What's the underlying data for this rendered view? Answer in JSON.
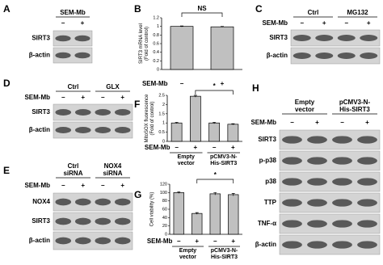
{
  "blots": [
    {
      "panel": "A",
      "groups": [
        [
          "SEM-Mb"
        ]
      ],
      "lanes": [
        "−",
        "+"
      ],
      "rows": [
        "SIRT3",
        "β-actin"
      ]
    },
    {
      "panel": "C",
      "groups": [
        [
          "Ctrl"
        ],
        [
          "MG132"
        ]
      ],
      "treatment_label": "SEM-Mb",
      "lanes": [
        "−",
        "+",
        "−",
        "+"
      ],
      "rows": [
        "SIRT3",
        "β-actin"
      ]
    },
    {
      "panel": "D",
      "groups": [
        [
          "Ctrl"
        ],
        [
          "GLX"
        ]
      ],
      "treatment_label": "SEM-Mb",
      "lanes": [
        "−",
        "+",
        "−",
        "+"
      ],
      "rows": [
        "SIRT3",
        "β-actin"
      ]
    },
    {
      "panel": "E",
      "groups": [
        [
          "Ctrl",
          "siRNA"
        ],
        [
          "NOX4",
          "siRNA"
        ]
      ],
      "treatment_label": "SEM-Mb",
      "lanes": [
        "−",
        "+",
        "−",
        "+"
      ],
      "rows": [
        "NOX4",
        "SIRT3",
        "β-actin"
      ]
    },
    {
      "panel": "H",
      "groups": [
        [
          "Empty",
          "vector"
        ],
        [
          "pCMV3-N-",
          "His-SIRT3"
        ]
      ],
      "treatment_label": "SEM-Mb",
      "lanes": [
        "−",
        "+",
        "−",
        "+"
      ],
      "rows": [
        "SIRT3",
        "p-p38",
        "p38",
        "TTP",
        "TNF-α",
        "β-actin"
      ]
    }
  ],
  "chart_data": [
    {
      "type": "bar",
      "panel": "B",
      "ylabel": [
        "SIRT3 mRNA level",
        "(Fold of control)"
      ],
      "treatment_label": "SEM-Mb",
      "categories": [
        "−",
        "+"
      ],
      "values": [
        1.0,
        0.99
      ],
      "errors": [
        0.01,
        0.01
      ],
      "color": "#c0c0c0",
      "ylim": [
        0,
        1.2
      ],
      "yticks": [
        0,
        0.2,
        0.4,
        0.6,
        0.8,
        1,
        1.2
      ],
      "annotation": "NS"
    },
    {
      "type": "bar",
      "panel": "F",
      "ylabel": [
        "MitoSOX fluorescence",
        "(Fold of control)"
      ],
      "treatment_label": "SEM-Mb",
      "categories": [
        "−",
        "+",
        "−",
        "+"
      ],
      "groups": [
        [
          "Empty",
          "vector"
        ],
        [
          "pCMV3-N-",
          "His-SIRT3"
        ]
      ],
      "values": [
        1.0,
        2.45,
        1.0,
        0.93
      ],
      "errors": [
        0.03,
        0.05,
        0.04,
        0.03
      ],
      "color": "#c0c0c0",
      "ylim": [
        0,
        2.5
      ],
      "yticks": [
        0,
        0.5,
        1,
        1.5,
        2,
        2.5
      ],
      "annotation": "*"
    },
    {
      "type": "bar",
      "panel": "G",
      "ylabel": [
        "Cell viability (%)"
      ],
      "treatment_label": "SEM-Mb",
      "categories": [
        "−",
        "+",
        "−",
        "+"
      ],
      "groups": [
        [
          "Empty",
          "vector"
        ],
        [
          "pCMV3-N-",
          "His-SIRT3"
        ]
      ],
      "values": [
        100,
        50,
        97,
        95
      ],
      "errors": [
        2,
        2,
        3,
        3
      ],
      "color": "#c0c0c0",
      "ylim": [
        0,
        120
      ],
      "yticks": [
        0,
        20,
        40,
        60,
        80,
        100,
        120
      ],
      "annotation": "*"
    }
  ]
}
